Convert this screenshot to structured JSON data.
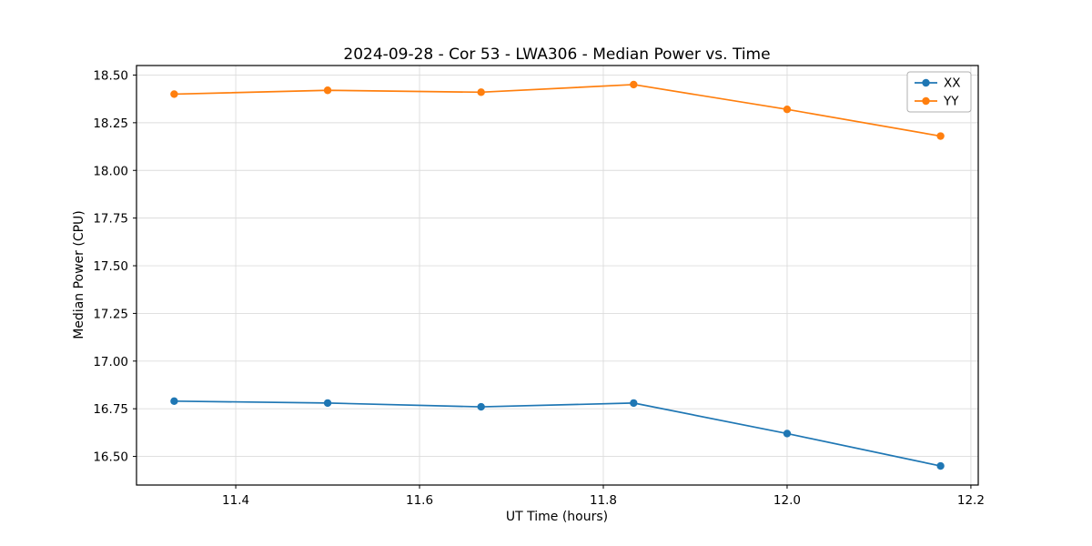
{
  "chart_data": {
    "type": "line",
    "title": "2024-09-28 - Cor 53 - LWA306 - Median Power vs. Time",
    "xlabel": "UT Time (hours)",
    "ylabel": "Median Power (CPU)",
    "x": [
      11.333,
      11.5,
      11.667,
      11.833,
      12.0,
      12.167
    ],
    "series": [
      {
        "name": "XX",
        "color": "#1f77b4",
        "values": [
          16.79,
          16.78,
          16.76,
          16.78,
          16.62,
          16.45
        ]
      },
      {
        "name": "YY",
        "color": "#ff7f0e",
        "values": [
          18.4,
          18.42,
          18.41,
          18.45,
          18.32,
          18.18
        ]
      }
    ],
    "xlim": [
      11.292,
      12.208
    ],
    "ylim": [
      16.35,
      18.55
    ],
    "xticks": [
      11.4,
      11.6,
      11.8,
      12.0,
      12.2
    ],
    "yticks": [
      16.5,
      16.75,
      17.0,
      17.25,
      17.5,
      17.75,
      18.0,
      18.25,
      18.5
    ],
    "grid": true,
    "grid_color": "#dcdcdc",
    "legend_position": "upper right",
    "background": "#ffffff"
  }
}
